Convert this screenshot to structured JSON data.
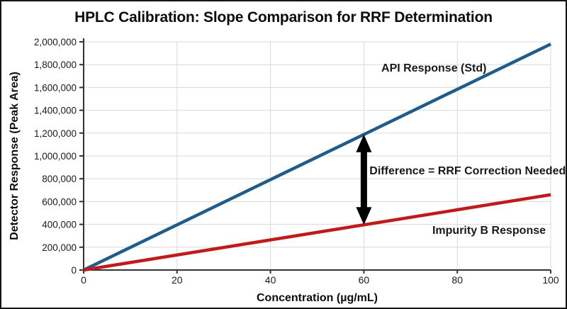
{
  "chart_data": {
    "type": "line",
    "title": "HPLC Calibration: Slope Comparison for RRF Determination",
    "xlabel": "Concentration (µg/mL)",
    "ylabel": "Detector Response (Peak Area)",
    "xlim": [
      0,
      100
    ],
    "ylim": [
      0,
      2000000
    ],
    "grid": true,
    "legend_position": "none",
    "x": [
      0,
      20,
      40,
      60,
      80,
      100
    ],
    "series": [
      {
        "name": "API Response (Std)",
        "color": "#1f5c8b",
        "values": [
          0,
          396000,
          792000,
          1188000,
          1584000,
          1980000
        ]
      },
      {
        "name": "Impurity B Response",
        "color": "#c01b1b",
        "values": [
          0,
          132000,
          264000,
          396000,
          528000,
          660000
        ]
      }
    ],
    "x_ticks": [
      {
        "value": 0,
        "label": "0"
      },
      {
        "value": 20,
        "label": "20"
      },
      {
        "value": 40,
        "label": "40"
      },
      {
        "value": 60,
        "label": "60"
      },
      {
        "value": 80,
        "label": "80"
      },
      {
        "value": 100,
        "label": "100"
      }
    ],
    "y_ticks": [
      {
        "value": 0,
        "label": "0"
      },
      {
        "value": 200000,
        "label": "200,000"
      },
      {
        "value": 400000,
        "label": "400,000"
      },
      {
        "value": 600000,
        "label": "600,000"
      },
      {
        "value": 800000,
        "label": "800,000"
      },
      {
        "value": 1000000,
        "label": "1,000,000"
      },
      {
        "value": 1200000,
        "label": "1,200,000"
      },
      {
        "value": 1400000,
        "label": "1,400,000"
      },
      {
        "value": 1600000,
        "label": "1,600,000"
      },
      {
        "value": 1800000,
        "label": "1,800,000"
      },
      {
        "value": 2000000,
        "label": "2,000,000"
      }
    ],
    "annotations": [
      {
        "text": "API Response (Std)",
        "x": 75,
        "y": 1740000,
        "anchor": "middle"
      },
      {
        "text": "Difference = RRF Correction Needed",
        "x": 61.2,
        "y": 838000,
        "anchor": "start"
      },
      {
        "text": "Impurity B Response",
        "x": 86.8,
        "y": 317000,
        "anchor": "middle"
      }
    ],
    "arrow": {
      "x": 60,
      "from_value": 396000,
      "to_value": 1188000,
      "color": "#000000"
    },
    "colors": {
      "grid": "#d9d9d9",
      "axis": "#333333",
      "text": "#1a1a1a"
    }
  }
}
